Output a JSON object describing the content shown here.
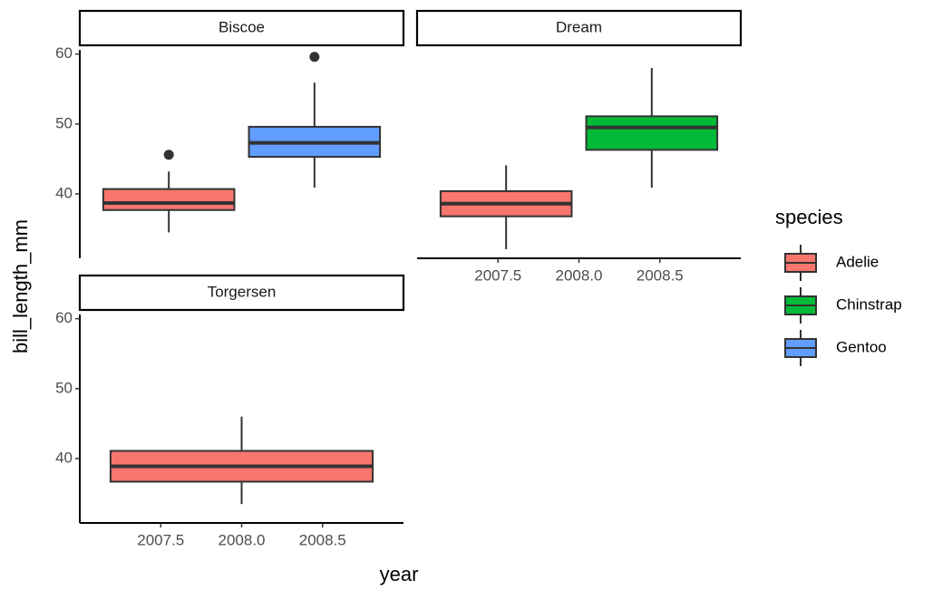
{
  "chart_data": {
    "type": "box",
    "x_label": "year",
    "y_label": "bill_length_mm",
    "legend_title": "species",
    "panels": [
      "Biscoe",
      "Dream",
      "Torgersen"
    ],
    "xlim": [
      2007,
      2009
    ],
    "xticks": [
      2007.5,
      {
        "value": 2008,
        "label": "2008.0"
      },
      2008.5
    ],
    "ylim": [
      30.8,
      60.6
    ],
    "yticks": [
      40,
      50,
      60
    ],
    "series": [
      {
        "name": "Adelie",
        "color": "#f8766d",
        "boxes": [
          {
            "whisker_low": 34.5,
            "q1": 37.7,
            "median": 38.7,
            "q3": 40.7,
            "whisker_high": 43.2,
            "outliers": [
              45.6
            ]
          },
          {
            "whisker_low": 32.1,
            "q1": 36.8,
            "median": 38.6,
            "q3": 40.4,
            "whisker_high": 44.1,
            "outliers": []
          },
          {
            "whisker_low": 33.5,
            "q1": 36.7,
            "median": 38.9,
            "q3": 41.1,
            "whisker_high": 46.0,
            "outliers": []
          }
        ]
      },
      {
        "name": "Chinstrap",
        "color": "#00ba38",
        "boxes": [
          null,
          {
            "whisker_low": 40.9,
            "q1": 46.3,
            "median": 49.5,
            "q3": 51.1,
            "whisker_high": 58.0,
            "outliers": []
          },
          null
        ]
      },
      {
        "name": "Gentoo",
        "color": "#619cff",
        "boxes": [
          {
            "whisker_low": 40.9,
            "q1": 45.3,
            "median": 47.3,
            "q3": 49.6,
            "whisker_high": 55.9,
            "outliers": [
              59.6
            ]
          },
          null,
          null
        ]
      }
    ]
  }
}
